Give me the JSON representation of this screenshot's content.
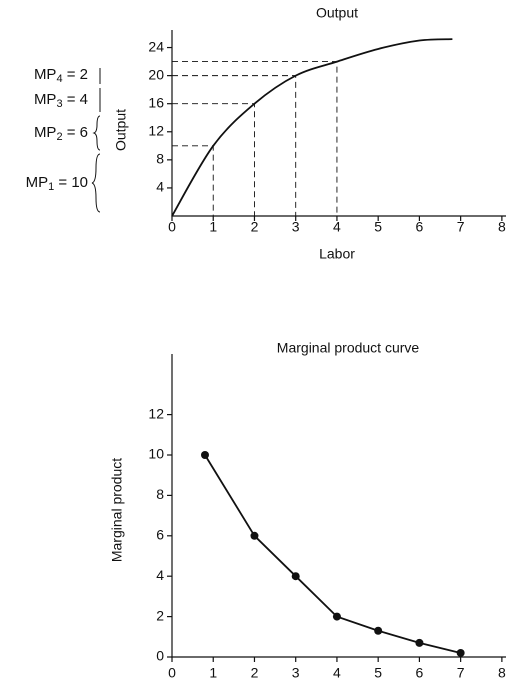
{
  "chart_data": [
    {
      "type": "line",
      "title": "Output",
      "x_label": "Labor",
      "y_label": "Output",
      "x": [
        0,
        1,
        2,
        3,
        4,
        5,
        6,
        6.8
      ],
      "values": [
        0,
        10,
        16,
        20,
        22,
        23.8,
        25,
        25.2
      ],
      "color": "#111",
      "smooth": true,
      "markers": false,
      "drop_lines": [
        1,
        2,
        3,
        4
      ],
      "xlim": [
        0,
        8.1
      ],
      "xticks": [
        0,
        1,
        2,
        3,
        4,
        5,
        6,
        7,
        8
      ],
      "ylim": [
        0,
        26.5
      ],
      "yticks": [
        4,
        8,
        12,
        16,
        20,
        24
      ],
      "annotations": [
        {
          "base": "MP",
          "sub": "4",
          "rest": " = 2"
        },
        {
          "base": "MP",
          "sub": "3",
          "rest": " = 4"
        },
        {
          "base": "MP",
          "sub": "2",
          "rest": " = 6"
        },
        {
          "base": "MP",
          "sub": "1",
          "rest": " = 10"
        }
      ]
    },
    {
      "type": "line",
      "title": "Marginal product curve",
      "y_label": "Marginal product",
      "x": [
        0.8,
        2,
        3,
        4,
        5,
        6,
        7
      ],
      "values": [
        10,
        6,
        4,
        2,
        1.3,
        0.7,
        0.2
      ],
      "color": "#111",
      "smooth": false,
      "markers": true,
      "xlim": [
        0,
        8.1
      ],
      "xticks": [
        0,
        1,
        2,
        3,
        4,
        5,
        6,
        7,
        8
      ],
      "ylim": [
        0,
        15
      ],
      "yticks": [
        0,
        2,
        4,
        6,
        8,
        10,
        12
      ]
    }
  ]
}
